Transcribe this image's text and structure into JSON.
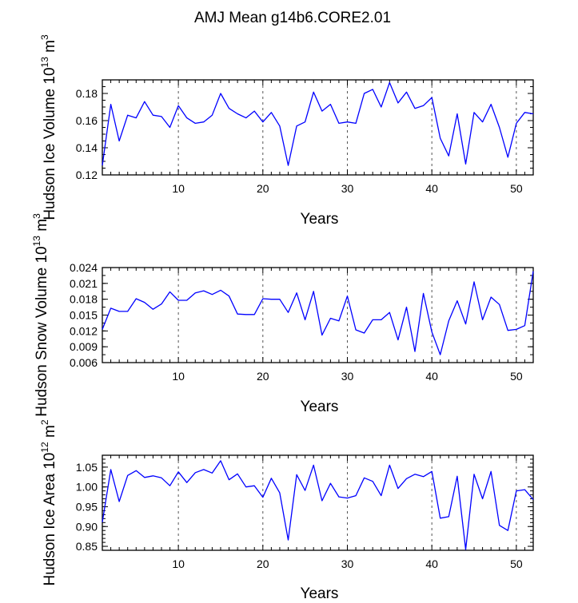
{
  "title": "AMJ Mean g14b6.CORE2.01",
  "chart_data": [
    {
      "type": "line",
      "ylabel_main": "Hudson Ice Volume 10",
      "ylabel_exp": "13",
      "ylabel_unit": " m",
      "ylabel_unit_exp": "3",
      "xlabel": "Years",
      "xlim": [
        1,
        52
      ],
      "ylim": [
        0.12,
        0.19
      ],
      "yticks": [
        0.12,
        0.14,
        0.16,
        0.18
      ],
      "ytick_labels": [
        "0.12",
        "0.14",
        "0.16",
        "0.18"
      ],
      "yminor_step": 0.005,
      "xticks": [
        10,
        20,
        30,
        40,
        50
      ],
      "xtick_labels": [
        "10",
        "20",
        "30",
        "40",
        "50"
      ],
      "line_color": "#0000ff",
      "x": [
        1,
        2,
        3,
        4,
        5,
        6,
        7,
        8,
        9,
        10,
        11,
        12,
        13,
        14,
        15,
        16,
        17,
        18,
        19,
        20,
        21,
        22,
        23,
        24,
        25,
        26,
        27,
        28,
        29,
        30,
        31,
        32,
        33,
        34,
        35,
        36,
        37,
        38,
        39,
        40,
        41,
        42,
        43,
        44,
        45,
        46,
        47,
        48,
        49,
        50,
        51,
        52
      ],
      "values": [
        0.127,
        0.172,
        0.145,
        0.164,
        0.162,
        0.174,
        0.164,
        0.163,
        0.155,
        0.171,
        0.162,
        0.158,
        0.159,
        0.164,
        0.18,
        0.169,
        0.165,
        0.162,
        0.167,
        0.159,
        0.166,
        0.156,
        0.127,
        0.156,
        0.159,
        0.181,
        0.167,
        0.172,
        0.158,
        0.159,
        0.158,
        0.18,
        0.183,
        0.17,
        0.188,
        0.173,
        0.181,
        0.169,
        0.171,
        0.177,
        0.147,
        0.134,
        0.165,
        0.128,
        0.166,
        0.159,
        0.172,
        0.155,
        0.133,
        0.158,
        0.166,
        0.165
      ]
    },
    {
      "type": "line",
      "ylabel_main": "Hudson Snow Volume 10",
      "ylabel_exp": "13",
      "ylabel_unit": " m",
      "ylabel_unit_exp": "3",
      "xlabel": "Years",
      "xlim": [
        1,
        52
      ],
      "ylim": [
        0.006,
        0.024
      ],
      "yticks": [
        0.006,
        0.009,
        0.012,
        0.015,
        0.018,
        0.021,
        0.024
      ],
      "ytick_labels": [
        "0.006",
        "0.009",
        "0.012",
        "0.015",
        "0.018",
        "0.021",
        "0.024"
      ],
      "yminor_step": 0.0015,
      "xticks": [
        10,
        20,
        30,
        40,
        50
      ],
      "xtick_labels": [
        "10",
        "20",
        "30",
        "40",
        "50"
      ],
      "line_color": "#0000ff",
      "x": [
        1,
        2,
        3,
        4,
        5,
        6,
        7,
        8,
        9,
        10,
        11,
        12,
        13,
        14,
        15,
        16,
        17,
        18,
        19,
        20,
        21,
        22,
        23,
        24,
        25,
        26,
        27,
        28,
        29,
        30,
        31,
        32,
        33,
        34,
        35,
        36,
        37,
        38,
        39,
        40,
        41,
        42,
        43,
        44,
        45,
        46,
        47,
        48,
        49,
        50,
        51,
        52
      ],
      "values": [
        0.0123,
        0.0163,
        0.0157,
        0.0157,
        0.0181,
        0.0174,
        0.0161,
        0.0171,
        0.0194,
        0.0178,
        0.0178,
        0.0192,
        0.0196,
        0.0189,
        0.0197,
        0.0186,
        0.0152,
        0.0151,
        0.0151,
        0.0181,
        0.018,
        0.018,
        0.0155,
        0.0192,
        0.0141,
        0.0195,
        0.0112,
        0.0144,
        0.0139,
        0.0186,
        0.0122,
        0.0116,
        0.0141,
        0.0141,
        0.0155,
        0.0103,
        0.0165,
        0.0081,
        0.0191,
        0.0118,
        0.0075,
        0.0139,
        0.0177,
        0.0133,
        0.0213,
        0.0141,
        0.0184,
        0.017,
        0.0121,
        0.0123,
        0.013,
        0.0233
      ]
    },
    {
      "type": "line",
      "ylabel_main": "Hudson Ice Area 10",
      "ylabel_exp": "12",
      "ylabel_unit": " m",
      "ylabel_unit_exp": "2",
      "xlabel": "Years",
      "xlim": [
        1,
        52
      ],
      "ylim": [
        0.84,
        1.08
      ],
      "yticks": [
        0.85,
        0.9,
        0.95,
        1.0,
        1.05
      ],
      "ytick_labels": [
        "0.85",
        "0.90",
        "0.95",
        "1.00",
        "1.05"
      ],
      "yminor_step": 0.01,
      "xticks": [
        10,
        20,
        30,
        40,
        50
      ],
      "xtick_labels": [
        "10",
        "20",
        "30",
        "40",
        "50"
      ],
      "line_color": "#0000ff",
      "x": [
        1,
        2,
        3,
        4,
        5,
        6,
        7,
        8,
        9,
        10,
        11,
        12,
        13,
        14,
        15,
        16,
        17,
        18,
        19,
        20,
        21,
        22,
        23,
        24,
        25,
        26,
        27,
        28,
        29,
        30,
        31,
        32,
        33,
        34,
        35,
        36,
        37,
        38,
        39,
        40,
        41,
        42,
        43,
        44,
        45,
        46,
        47,
        48,
        49,
        50,
        51,
        52
      ],
      "values": [
        0.911,
        1.044,
        0.963,
        1.029,
        1.041,
        1.024,
        1.028,
        1.023,
        1.003,
        1.038,
        1.011,
        1.036,
        1.044,
        1.035,
        1.066,
        1.018,
        1.033,
        1.0,
        1.003,
        0.974,
        1.022,
        0.985,
        0.866,
        1.031,
        0.991,
        1.055,
        0.965,
        1.009,
        0.975,
        0.972,
        0.978,
        1.023,
        1.014,
        0.978,
        1.055,
        0.996,
        1.021,
        1.032,
        1.026,
        1.039,
        0.921,
        0.925,
        1.027,
        0.842,
        1.032,
        0.97,
        1.039,
        0.903,
        0.89,
        0.99,
        0.993,
        0.968
      ]
    }
  ]
}
